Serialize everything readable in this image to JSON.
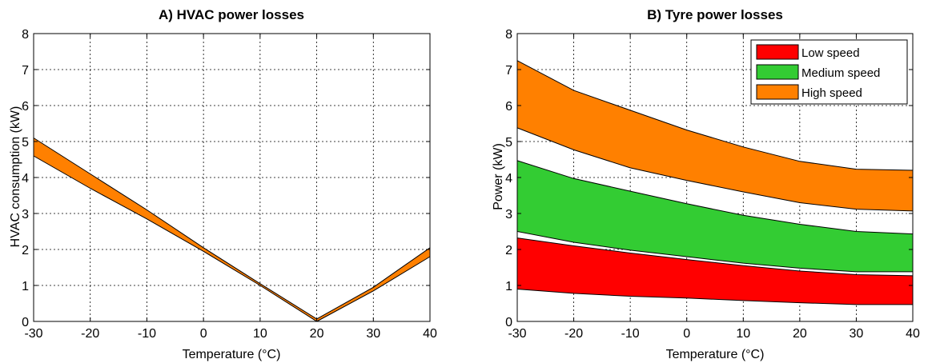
{
  "chart_data": [
    {
      "type": "area",
      "title": "A) HVAC power losses",
      "xlabel": "Temperature (°C)",
      "ylabel": "HVAC consumption (kW)",
      "xlim": [
        -30,
        40
      ],
      "ylim": [
        0,
        8
      ],
      "xticks": [
        -30,
        -20,
        -10,
        0,
        10,
        20,
        30,
        40
      ],
      "yticks": [
        0,
        1,
        2,
        3,
        4,
        5,
        6,
        7,
        8
      ],
      "grid": true,
      "series": [
        {
          "color": "#FF8000",
          "x": [
            -30,
            -20,
            -10,
            0,
            10,
            20,
            30,
            40
          ],
          "lower": [
            4.6,
            3.7,
            2.85,
            1.95,
            1.0,
            0.0,
            0.85,
            1.8
          ],
          "upper": [
            5.1,
            4.1,
            3.1,
            2.05,
            1.05,
            0.07,
            0.95,
            2.05
          ]
        }
      ]
    },
    {
      "type": "area",
      "title": "B) Tyre power losses",
      "xlabel": "Temperature (°C)",
      "ylabel": "Power (kW)",
      "xlim": [
        -30,
        40
      ],
      "ylim": [
        0,
        8
      ],
      "xticks": [
        -30,
        -20,
        -10,
        0,
        10,
        20,
        30,
        40
      ],
      "yticks": [
        0,
        1,
        2,
        3,
        4,
        5,
        6,
        7,
        8
      ],
      "grid": true,
      "legend_position": "top-right",
      "series": [
        {
          "name": "Low speed",
          "color": "#FF0000",
          "x": [
            -30,
            -20,
            -10,
            0,
            10,
            20,
            30,
            40
          ],
          "lower": [
            0.9,
            0.78,
            0.7,
            0.65,
            0.58,
            0.52,
            0.47,
            0.47
          ],
          "upper": [
            2.32,
            2.1,
            1.9,
            1.72,
            1.55,
            1.4,
            1.3,
            1.27
          ]
        },
        {
          "name": "Medium speed",
          "color": "#33CC33",
          "x": [
            -30,
            -20,
            -10,
            0,
            10,
            20,
            30,
            40
          ],
          "lower": [
            2.5,
            2.2,
            1.98,
            1.8,
            1.62,
            1.48,
            1.38,
            1.38
          ],
          "upper": [
            4.47,
            3.97,
            3.62,
            3.27,
            2.95,
            2.7,
            2.5,
            2.43
          ]
        },
        {
          "name": "High speed",
          "color": "#FF8000",
          "x": [
            -30,
            -20,
            -10,
            0,
            10,
            20,
            30,
            40
          ],
          "lower": [
            5.38,
            4.77,
            4.27,
            3.92,
            3.6,
            3.3,
            3.12,
            3.07
          ],
          "upper": [
            7.25,
            6.42,
            5.87,
            5.32,
            4.85,
            4.45,
            4.23,
            4.2
          ]
        }
      ]
    }
  ]
}
